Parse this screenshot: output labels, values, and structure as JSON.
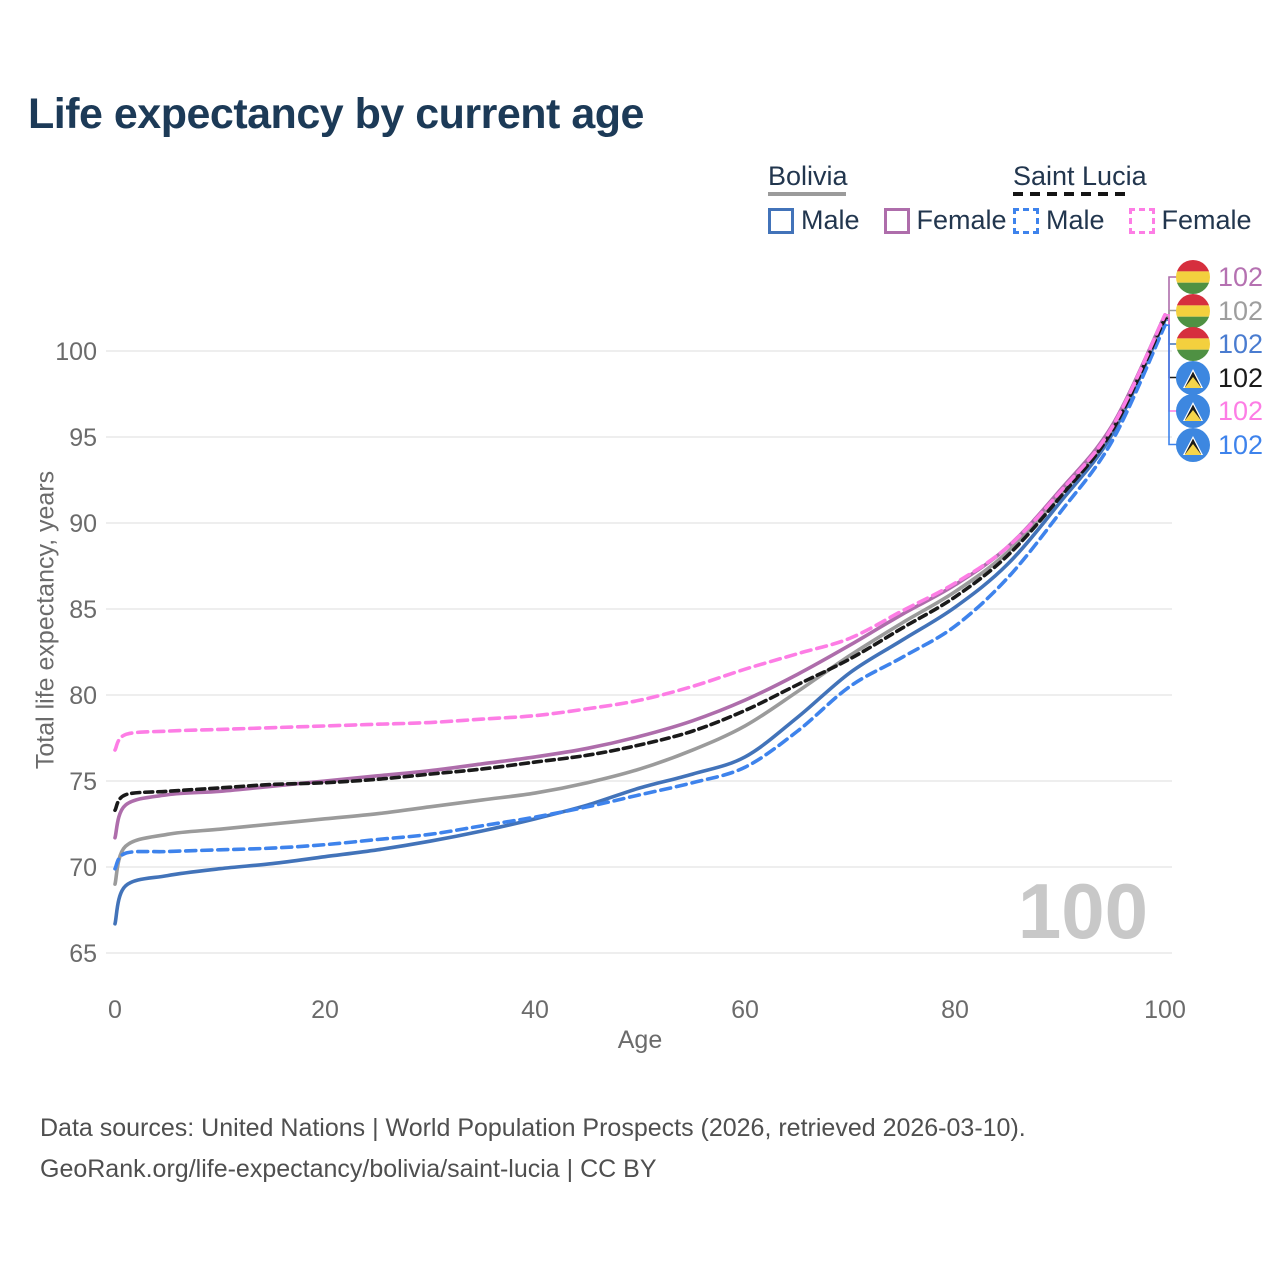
{
  "title": "Life expectancy by current age",
  "legend": {
    "bolivia": {
      "label": "Bolivia",
      "male": "Male",
      "female": "Female"
    },
    "saint_lucia": {
      "label": "Saint Lucia",
      "male": "Male",
      "female": "Female"
    }
  },
  "y_axis": {
    "title": "Total life expectancy, years"
  },
  "x_axis": {
    "title": "Age"
  },
  "watermark": "100",
  "end_labels": [
    {
      "series": "bolivia-female",
      "value": "102",
      "flag": "bolivia",
      "color": "#b571b1"
    },
    {
      "series": "bolivia-total",
      "value": "102",
      "flag": "bolivia",
      "color": "#9e9e9e"
    },
    {
      "series": "bolivia-male",
      "value": "102",
      "flag": "bolivia",
      "color": "#4a7cd0"
    },
    {
      "series": "saint-lucia-total",
      "value": "102",
      "flag": "saint-lucia",
      "color": "#1a1a1a"
    },
    {
      "series": "saint-lucia-female",
      "value": "102",
      "flag": "saint-lucia",
      "color": "#fd7de5"
    },
    {
      "series": "saint-lucia-male",
      "value": "102",
      "flag": "saint-lucia",
      "color": "#3e83ec"
    }
  ],
  "footer": {
    "line1": "Data sources: United Nations | World Population Prospects (2026, retrieved 2026-03-10).",
    "line2": "GeoRank.org/life-expectancy/bolivia/saint-lucia | CC BY"
  },
  "chart_data": {
    "type": "line",
    "title": "Life expectancy by current age",
    "xlabel": "Age",
    "ylabel": "Total life expectancy, years",
    "xlim": [
      0,
      100
    ],
    "ylim": [
      65,
      103
    ],
    "x_ticks": [
      0,
      20,
      40,
      60,
      80,
      100
    ],
    "y_ticks": [
      65,
      70,
      75,
      80,
      85,
      90,
      95,
      100
    ],
    "grid": "horizontal",
    "series": [
      {
        "id": "bolivia-male",
        "country": "Bolivia",
        "sex": "Male",
        "color": "#4273b9",
        "dash": null,
        "points": [
          [
            0,
            66.7
          ],
          [
            1,
            68.9
          ],
          [
            5,
            69.5
          ],
          [
            10,
            69.9
          ],
          [
            15,
            70.2
          ],
          [
            20,
            70.6
          ],
          [
            25,
            71.0
          ],
          [
            30,
            71.5
          ],
          [
            35,
            72.1
          ],
          [
            40,
            72.8
          ],
          [
            45,
            73.6
          ],
          [
            50,
            74.6
          ],
          [
            55,
            75.4
          ],
          [
            60,
            76.4
          ],
          [
            65,
            78.7
          ],
          [
            70,
            81.3
          ],
          [
            75,
            83.2
          ],
          [
            80,
            85.1
          ],
          [
            85,
            87.6
          ],
          [
            90,
            91.2
          ],
          [
            95,
            95.2
          ],
          [
            100,
            101.8
          ]
        ]
      },
      {
        "id": "bolivia-total",
        "country": "Bolivia",
        "sex": "Both",
        "color": "#9b9b9b",
        "dash": null,
        "points": [
          [
            0,
            69.0
          ],
          [
            1,
            71.2
          ],
          [
            5,
            71.9
          ],
          [
            10,
            72.2
          ],
          [
            15,
            72.5
          ],
          [
            20,
            72.8
          ],
          [
            25,
            73.1
          ],
          [
            30,
            73.5
          ],
          [
            35,
            73.9
          ],
          [
            40,
            74.3
          ],
          [
            45,
            74.9
          ],
          [
            50,
            75.7
          ],
          [
            55,
            76.8
          ],
          [
            60,
            78.2
          ],
          [
            65,
            80.2
          ],
          [
            70,
            82.3
          ],
          [
            75,
            84.2
          ],
          [
            80,
            86.0
          ],
          [
            85,
            88.3
          ],
          [
            90,
            91.6
          ],
          [
            95,
            95.5
          ],
          [
            100,
            102.0
          ]
        ]
      },
      {
        "id": "bolivia-female",
        "country": "Bolivia",
        "sex": "Female",
        "color": "#ae6dab",
        "dash": null,
        "points": [
          [
            0,
            71.7
          ],
          [
            1,
            73.6
          ],
          [
            5,
            74.2
          ],
          [
            10,
            74.4
          ],
          [
            15,
            74.7
          ],
          [
            20,
            75.0
          ],
          [
            25,
            75.3
          ],
          [
            30,
            75.6
          ],
          [
            35,
            76.0
          ],
          [
            40,
            76.4
          ],
          [
            45,
            76.9
          ],
          [
            50,
            77.6
          ],
          [
            55,
            78.5
          ],
          [
            60,
            79.7
          ],
          [
            65,
            81.2
          ],
          [
            70,
            82.9
          ],
          [
            75,
            84.7
          ],
          [
            80,
            86.4
          ],
          [
            85,
            88.6
          ],
          [
            90,
            91.9
          ],
          [
            95,
            95.7
          ],
          [
            100,
            102.1
          ]
        ]
      },
      {
        "id": "saint-lucia-male",
        "country": "Saint Lucia",
        "sex": "Male",
        "color": "#3e83ec",
        "dash": "10 6",
        "points": [
          [
            0,
            69.9
          ],
          [
            1,
            70.8
          ],
          [
            5,
            70.9
          ],
          [
            10,
            71.0
          ],
          [
            15,
            71.1
          ],
          [
            20,
            71.3
          ],
          [
            25,
            71.6
          ],
          [
            30,
            71.9
          ],
          [
            35,
            72.4
          ],
          [
            40,
            72.9
          ],
          [
            45,
            73.5
          ],
          [
            50,
            74.2
          ],
          [
            55,
            74.9
          ],
          [
            60,
            75.8
          ],
          [
            65,
            77.9
          ],
          [
            70,
            80.5
          ],
          [
            75,
            82.2
          ],
          [
            80,
            84.0
          ],
          [
            85,
            86.8
          ],
          [
            90,
            90.6
          ],
          [
            95,
            94.8
          ],
          [
            100,
            101.5
          ]
        ]
      },
      {
        "id": "saint-lucia-total",
        "country": "Saint Lucia",
        "sex": "Both",
        "color": "#1a1a1a",
        "dash": "8 5",
        "points": [
          [
            0,
            73.3
          ],
          [
            1,
            74.2
          ],
          [
            5,
            74.4
          ],
          [
            10,
            74.6
          ],
          [
            15,
            74.8
          ],
          [
            20,
            74.9
          ],
          [
            25,
            75.1
          ],
          [
            30,
            75.4
          ],
          [
            35,
            75.7
          ],
          [
            40,
            76.1
          ],
          [
            45,
            76.5
          ],
          [
            50,
            77.1
          ],
          [
            55,
            77.9
          ],
          [
            60,
            79.1
          ],
          [
            65,
            80.6
          ],
          [
            70,
            82.1
          ],
          [
            75,
            83.9
          ],
          [
            80,
            85.7
          ],
          [
            85,
            88.1
          ],
          [
            90,
            91.5
          ],
          [
            95,
            95.4
          ],
          [
            100,
            101.9
          ]
        ]
      },
      {
        "id": "saint-lucia-female",
        "country": "Saint Lucia",
        "sex": "Female",
        "color": "#fd7de5",
        "dash": "10 6",
        "points": [
          [
            0,
            76.8
          ],
          [
            1,
            77.7
          ],
          [
            5,
            77.9
          ],
          [
            10,
            78.0
          ],
          [
            15,
            78.1
          ],
          [
            20,
            78.2
          ],
          [
            25,
            78.3
          ],
          [
            30,
            78.4
          ],
          [
            35,
            78.6
          ],
          [
            40,
            78.8
          ],
          [
            45,
            79.2
          ],
          [
            50,
            79.7
          ],
          [
            55,
            80.5
          ],
          [
            60,
            81.5
          ],
          [
            65,
            82.4
          ],
          [
            70,
            83.3
          ],
          [
            75,
            84.9
          ],
          [
            80,
            86.5
          ],
          [
            85,
            88.6
          ],
          [
            90,
            91.8
          ],
          [
            95,
            95.6
          ],
          [
            100,
            102.1
          ]
        ]
      }
    ]
  }
}
